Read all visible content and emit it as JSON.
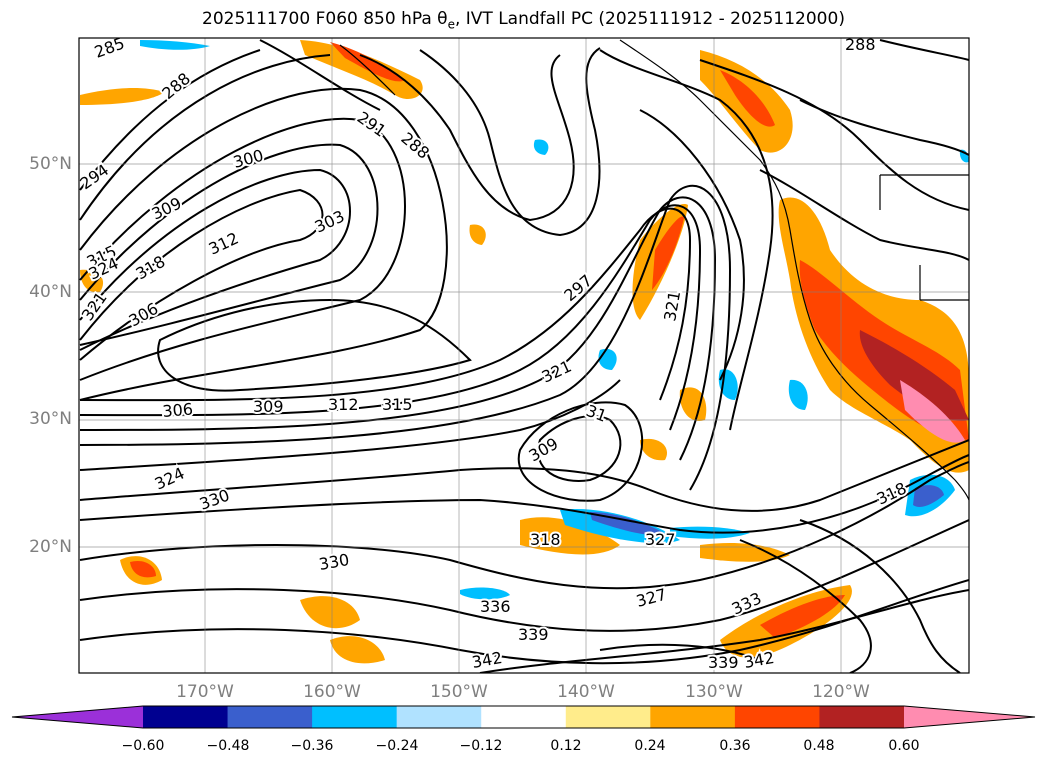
{
  "title": {
    "prefix": "2025111700 F060 850 hPa θ",
    "subscript": "e",
    "suffix": ", IVT Landfall PC (2025111912 - 2025112000)"
  },
  "map": {
    "lat_labels": [
      "50°N",
      "40°N",
      "30°N",
      "20°N"
    ],
    "lon_labels": [
      "170°W",
      "160°W",
      "150°W",
      "140°W",
      "130°W",
      "120°W"
    ],
    "contour_color": "#000000",
    "gridline_color": "#808080",
    "contour_labels": [
      {
        "text": "285"
      },
      {
        "text": "288"
      },
      {
        "text": "288"
      },
      {
        "text": "291"
      },
      {
        "text": "288"
      },
      {
        "text": "294"
      },
      {
        "text": "300"
      },
      {
        "text": "309"
      },
      {
        "text": "303"
      },
      {
        "text": "312"
      },
      {
        "text": "315"
      },
      {
        "text": "324"
      },
      {
        "text": "318"
      },
      {
        "text": "321"
      },
      {
        "text": "306"
      },
      {
        "text": "297"
      },
      {
        "text": "321"
      },
      {
        "text": "321"
      },
      {
        "text": "306"
      },
      {
        "text": "309"
      },
      {
        "text": "312"
      },
      {
        "text": "315"
      },
      {
        "text": "31"
      },
      {
        "text": "309"
      },
      {
        "text": "324"
      },
      {
        "text": "330"
      },
      {
        "text": "318"
      },
      {
        "text": "318"
      },
      {
        "text": "327"
      },
      {
        "text": "330"
      },
      {
        "text": "336"
      },
      {
        "text": "327"
      },
      {
        "text": "333"
      },
      {
        "text": "339"
      },
      {
        "text": "342"
      },
      {
        "text": "339"
      },
      {
        "text": "342"
      }
    ]
  },
  "colorbar": {
    "ticks": [
      "−0.60",
      "−0.48",
      "−0.36",
      "−0.24",
      "−0.12",
      "0.12",
      "0.24",
      "0.36",
      "0.48",
      "0.60"
    ],
    "colors": [
      "#9b30d9",
      "#000090",
      "#3a5fcd",
      "#00bfff",
      "#b0e2ff",
      "#ffffff",
      "#ffec8b",
      "#ffa500",
      "#ff4500",
      "#b22222",
      "#ff8cb0"
    ]
  }
}
